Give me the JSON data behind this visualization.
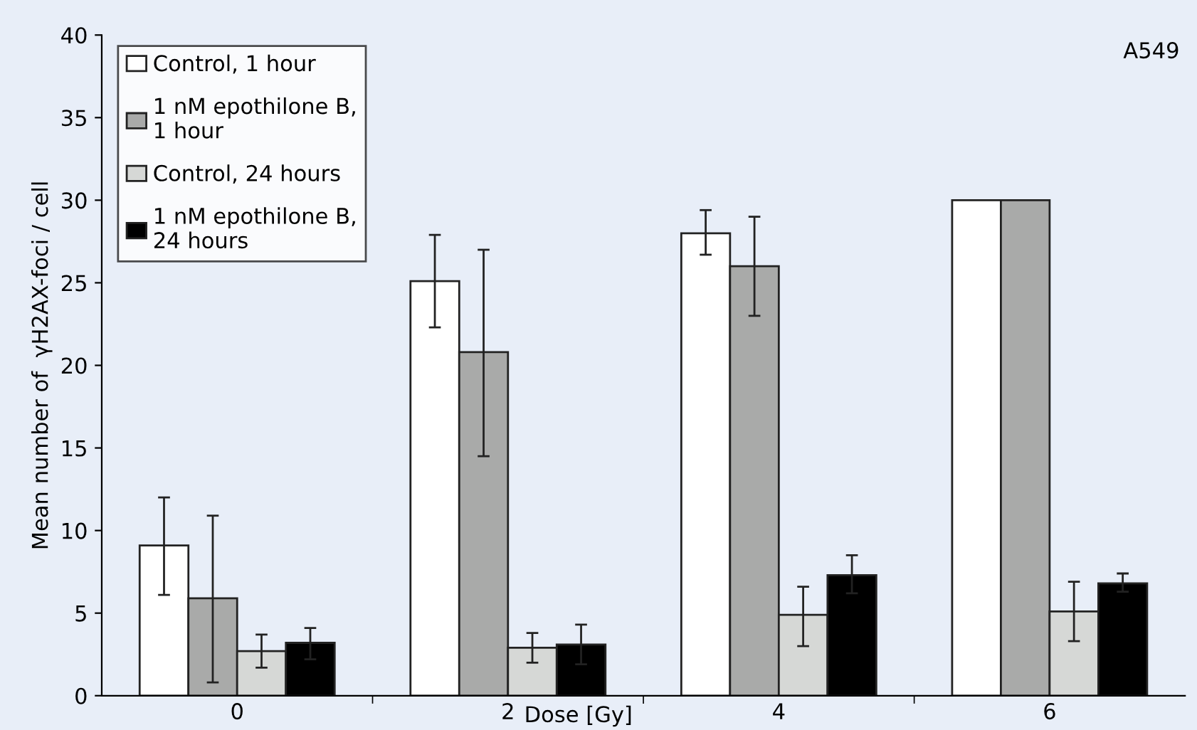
{
  "chart_data": {
    "type": "bar",
    "xlabel": "Dose [Gy]",
    "ylabel": "Mean number of  γH2AX-foci / cell",
    "annotations": [
      "A549"
    ],
    "categories": [
      "0",
      "2",
      "4",
      "6"
    ],
    "ylim": [
      0,
      40
    ],
    "yticks": [
      0,
      5,
      10,
      15,
      20,
      25,
      30,
      35,
      40
    ],
    "grid": false,
    "legend": "top left",
    "series": [
      {
        "name": "Control, 1 hour",
        "color": "#ffffff",
        "values": [
          9.1,
          25.1,
          28.0,
          30.0
        ],
        "errors": [
          [
            6.1,
            12.0
          ],
          [
            22.3,
            27.9
          ],
          [
            26.7,
            29.4
          ],
          null
        ]
      },
      {
        "name": "1 nM epothilone B,\n1 hour",
        "color": "#a9aaa9",
        "values": [
          5.9,
          20.8,
          26.0,
          30.0
        ],
        "errors": [
          [
            0.8,
            10.9
          ],
          [
            14.5,
            27.0
          ],
          [
            23.0,
            29.0
          ],
          null
        ]
      },
      {
        "name": "Control, 24 hours",
        "color": "#d6d8d6",
        "values": [
          2.7,
          2.9,
          4.9,
          5.1
        ],
        "errors": [
          [
            1.7,
            3.7
          ],
          [
            2.0,
            3.8
          ],
          [
            3.0,
            6.6
          ],
          [
            3.3,
            6.9
          ]
        ]
      },
      {
        "name": "1 nM epothilone B,\n24 hours",
        "color": "#000000",
        "values": [
          3.2,
          3.1,
          7.3,
          6.8
        ],
        "errors": [
          [
            2.2,
            4.1
          ],
          [
            1.9,
            4.3
          ],
          [
            6.2,
            8.5
          ],
          [
            6.3,
            7.4
          ]
        ]
      }
    ]
  }
}
